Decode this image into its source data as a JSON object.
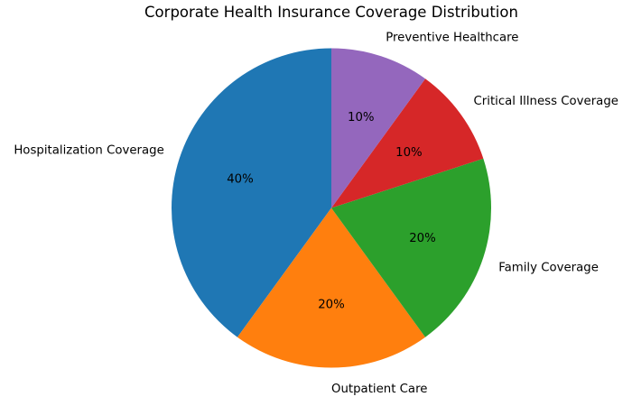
{
  "chart_data": {
    "type": "pie",
    "title": "Corporate Health Insurance Coverage Distribution",
    "slices": [
      {
        "label": "Hospitalization Coverage",
        "value": 40,
        "percent_label": "40%",
        "color": "#1f77b4"
      },
      {
        "label": "Outpatient Care",
        "value": 20,
        "percent_label": "20%",
        "color": "#ff7f0e"
      },
      {
        "label": "Family Coverage",
        "value": 20,
        "percent_label": "20%",
        "color": "#2ca02c"
      },
      {
        "label": "Critical Illness Coverage",
        "value": 10,
        "percent_label": "10%",
        "color": "#d62728"
      },
      {
        "label": "Preventive Healthcare",
        "value": 10,
        "percent_label": "10%",
        "color": "#9467bd"
      }
    ],
    "start_angle_deg": 90,
    "direction": "counterclockwise",
    "label_distance": 1.1,
    "pct_distance": 0.6,
    "text_color": "#000000",
    "background": "#ffffff",
    "legend": "none"
  }
}
